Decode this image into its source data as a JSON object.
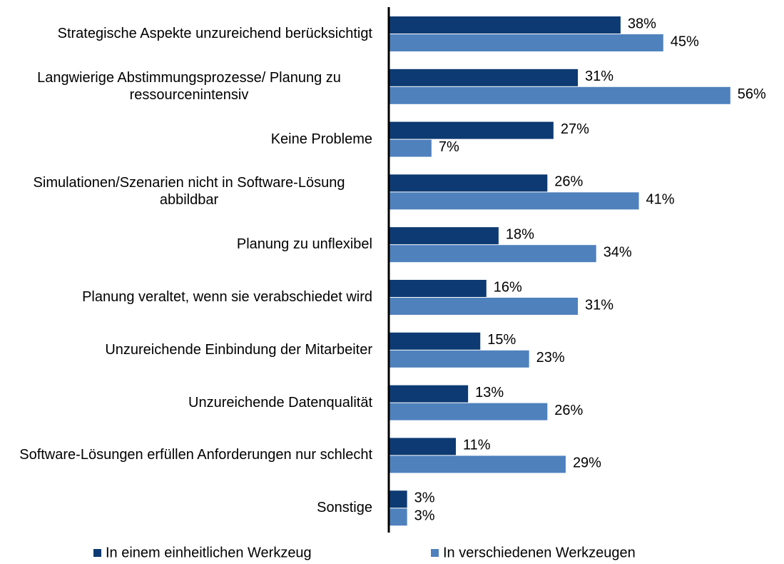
{
  "chart_data": {
    "type": "bar",
    "orientation": "horizontal",
    "categories": [
      "Strategische Aspekte unzureichend berücksichtigt",
      "Langwierige Abstimmungsprozesse/ Planung zu ressourcenintensiv",
      "Keine Probleme",
      "Simulationen/Szenarien nicht in Software-Lösung abbildbar",
      "Planung zu unflexibel",
      "Planung veraltet, wenn sie verabschiedet wird",
      "Unzureichende Einbindung der Mitarbeiter",
      "Unzureichende Datenqualität",
      "Software-Lösungen erfüllen Anforderungen nur schlecht",
      "Sonstige"
    ],
    "series": [
      {
        "name": "In einem einheitlichen Werkzeug",
        "color": "#0d3a72",
        "values": [
          38,
          31,
          27,
          26,
          18,
          16,
          15,
          13,
          11,
          3
        ],
        "value_labels": [
          "38%",
          "31%",
          "27%",
          "26%",
          "18%",
          "16%",
          "15%",
          "13%",
          "11%",
          "3%"
        ]
      },
      {
        "name": "In verschiedenen Werkzeugen",
        "color": "#4f81bd",
        "values": [
          45,
          56,
          7,
          41,
          34,
          31,
          23,
          26,
          29,
          3
        ],
        "value_labels": [
          "45%",
          "56%",
          "7%",
          "41%",
          "34%",
          "31%",
          "23%",
          "26%",
          "29%",
          "3%"
        ]
      }
    ],
    "legend": "bottom"
  }
}
